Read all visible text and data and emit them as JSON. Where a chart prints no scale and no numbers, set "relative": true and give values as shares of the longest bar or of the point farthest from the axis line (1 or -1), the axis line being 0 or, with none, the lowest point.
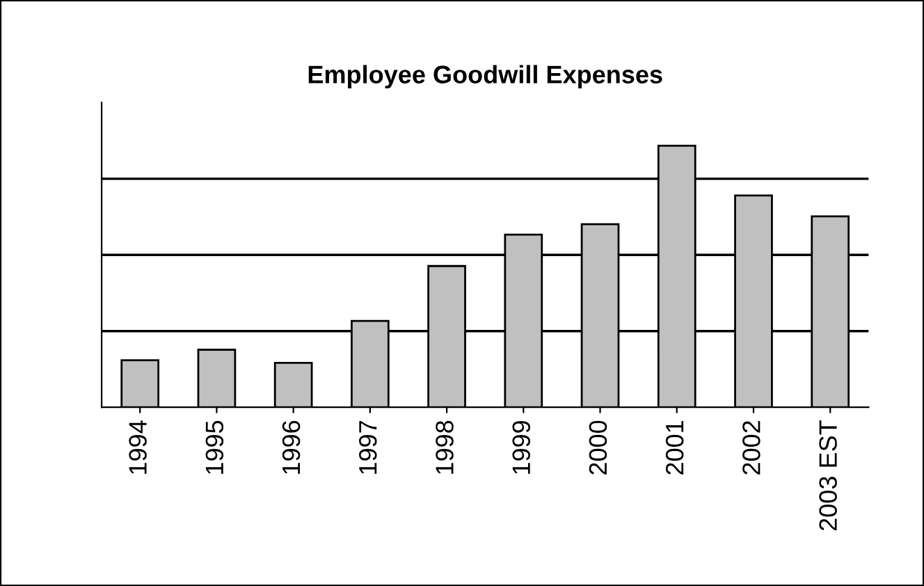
{
  "chart_data": {
    "type": "bar",
    "title": "Employee Goodwill Expenses",
    "categories": [
      "1994",
      "1995",
      "1996",
      "1997",
      "1998",
      "1999",
      "2000",
      "2001",
      "2002",
      "2003 EST"
    ],
    "values": [
      0.18,
      0.22,
      0.17,
      0.33,
      0.54,
      0.66,
      0.7,
      1,
      0.81,
      0.73
    ],
    "color": "#c0c0c0",
    "relative": true,
    "grid": "y"
  }
}
